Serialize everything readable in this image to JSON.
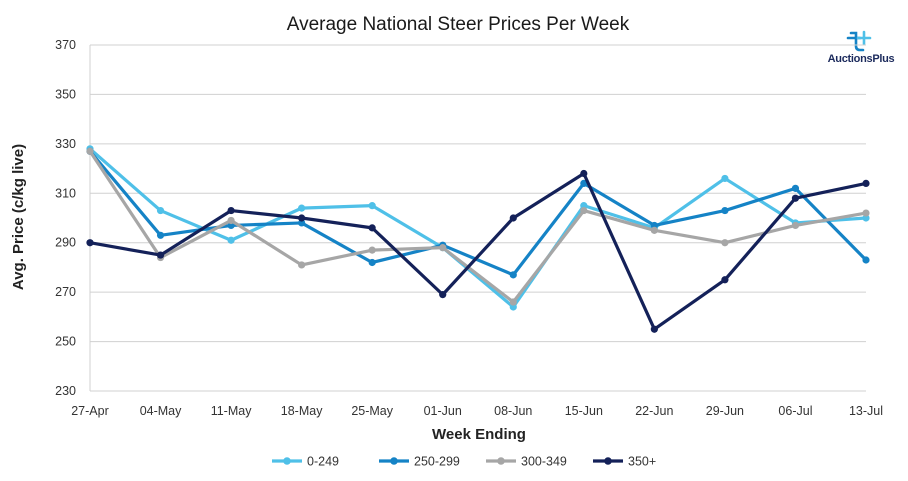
{
  "chart_data": {
    "type": "line",
    "title": "Average National Steer Prices Per Week",
    "xlabel": "Week Ending",
    "ylabel": "Avg. Price (c/kg live)",
    "ylim": [
      230,
      370
    ],
    "yticks": [
      230,
      250,
      270,
      290,
      310,
      330,
      350,
      370
    ],
    "grid": true,
    "legend_position": "bottom",
    "categories": [
      "27-Apr",
      "04-May",
      "11-May",
      "18-May",
      "25-May",
      "01-Jun",
      "08-Jun",
      "15-Jun",
      "22-Jun",
      "29-Jun",
      "06-Jul",
      "13-Jul"
    ],
    "series": [
      {
        "name": "0-249",
        "color": "#4fc0e8",
        "values": [
          328,
          303,
          291,
          304,
          305,
          288,
          264,
          305,
          296,
          316,
          298,
          300
        ]
      },
      {
        "name": "250-299",
        "color": "#1583c6",
        "values": [
          327,
          293,
          297,
          298,
          282,
          289,
          277,
          314,
          297,
          303,
          312,
          283
        ]
      },
      {
        "name": "300-349",
        "color": "#a6a6a6",
        "values": [
          327,
          284,
          299,
          281,
          287,
          288,
          266,
          303,
          295,
          290,
          297,
          302
        ]
      },
      {
        "name": "350+",
        "color": "#142159",
        "values": [
          290,
          285,
          303,
          300,
          296,
          269,
          300,
          318,
          255,
          275,
          308,
          314
        ]
      }
    ]
  },
  "logo": {
    "text": "AuctionsPlus",
    "icon": "auctionsplus-logo-icon"
  }
}
